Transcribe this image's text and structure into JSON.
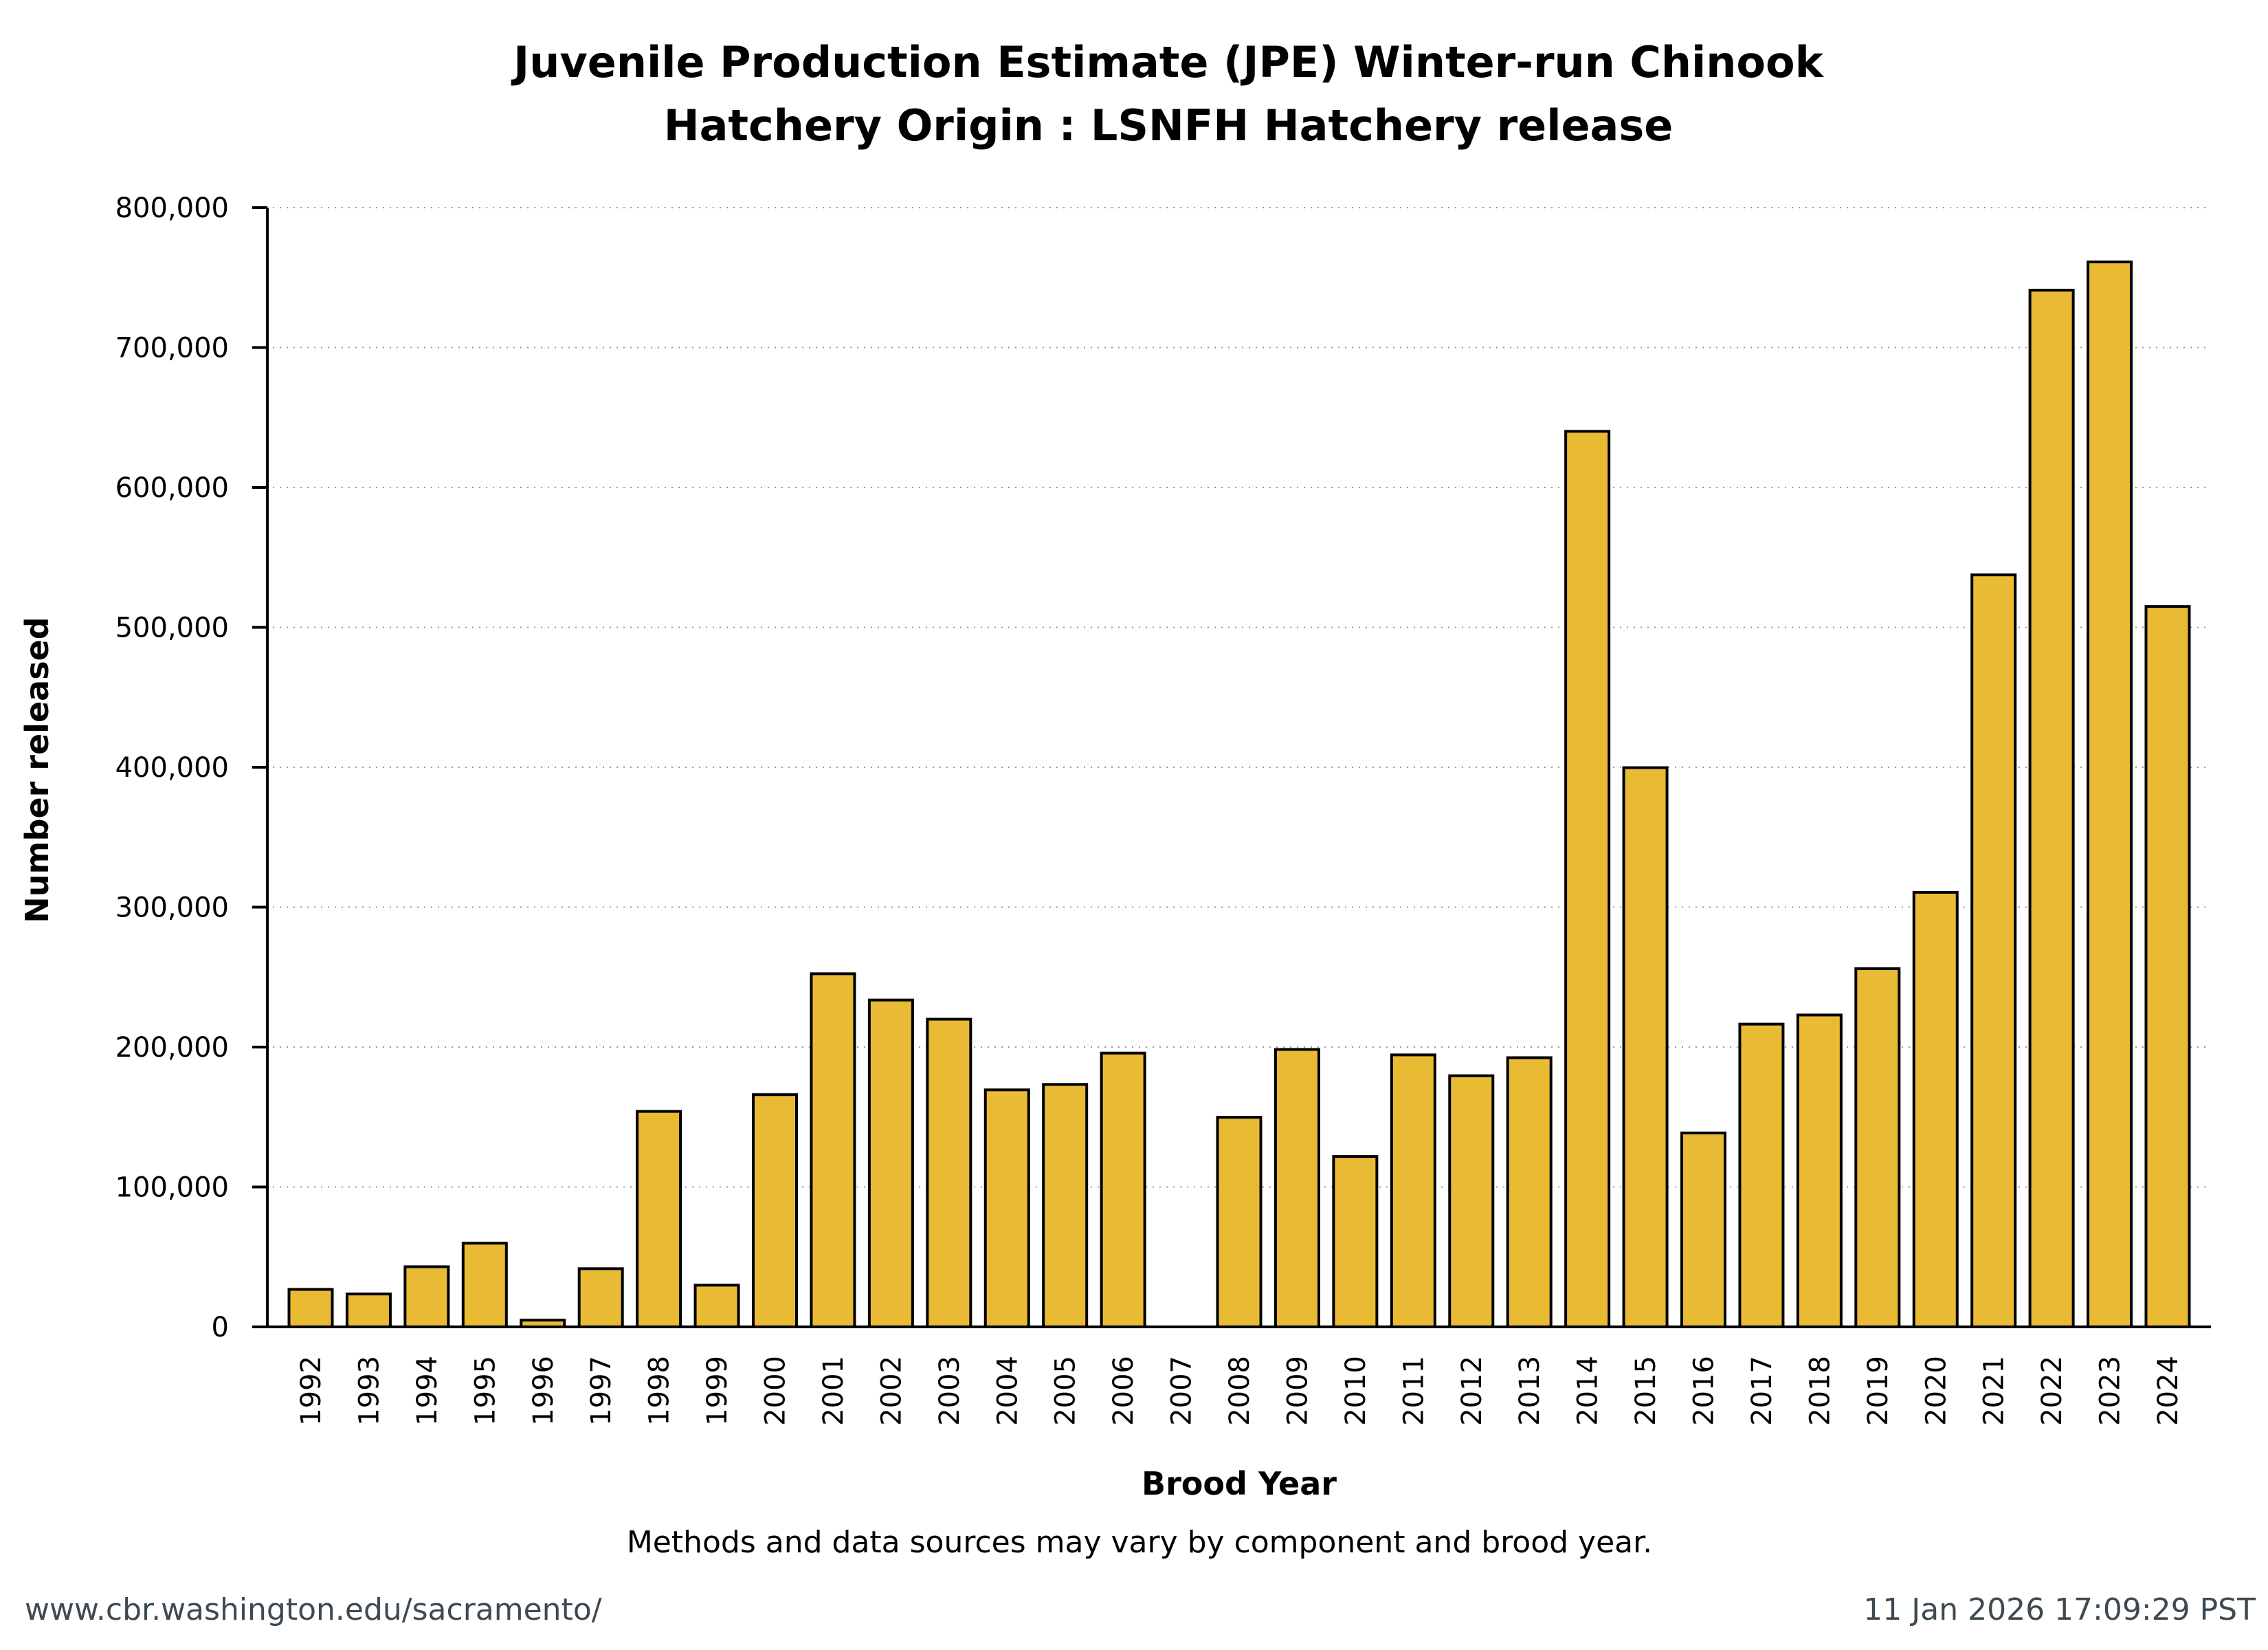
{
  "chart_data": {
    "type": "bar",
    "title": "Juvenile Production Estimate (JPE) Winter-run Chinook",
    "subtitle": "Hatchery Origin : LSNFH Hatchery release",
    "xlabel": "Brood Year",
    "ylabel": "Number released",
    "note": "Methods and data sources may vary by component and brood year.",
    "ylim": [
      0,
      800000
    ],
    "yticks": [
      0,
      100000,
      200000,
      300000,
      400000,
      500000,
      600000,
      700000,
      800000
    ],
    "ytick_labels": [
      "0",
      "100,000",
      "200,000",
      "300,000",
      "400,000",
      "500,000",
      "600,000",
      "700,000",
      "800,000"
    ],
    "grid": true,
    "legend": "none",
    "bar_color": "#e9bb34",
    "bar_edge_color": "#000000",
    "categories": [
      "1992",
      "1993",
      "1994",
      "1995",
      "1996",
      "1997",
      "1998",
      "1999",
      "2000",
      "2001",
      "2002",
      "2003",
      "2004",
      "2005",
      "2006",
      "2007",
      "2008",
      "2009",
      "2010",
      "2011",
      "2012",
      "2013",
      "2014",
      "2015",
      "2016",
      "2017",
      "2018",
      "2019",
      "2020",
      "2021",
      "2022",
      "2023",
      "2024"
    ],
    "values": [
      26800,
      23500,
      43000,
      59800,
      4800,
      41600,
      154000,
      29800,
      166000,
      252400,
      233600,
      219900,
      169400,
      173300,
      195700,
      0,
      149800,
      198300,
      121800,
      194400,
      179500,
      192400,
      640100,
      399700,
      138600,
      216400,
      222900,
      256000,
      310600,
      537500,
      741000,
      761200,
      514900
    ]
  },
  "footer": {
    "url": "www.cbr.washington.edu/sacramento/",
    "timestamp": "11 Jan 2026 17:09:29 PST"
  }
}
